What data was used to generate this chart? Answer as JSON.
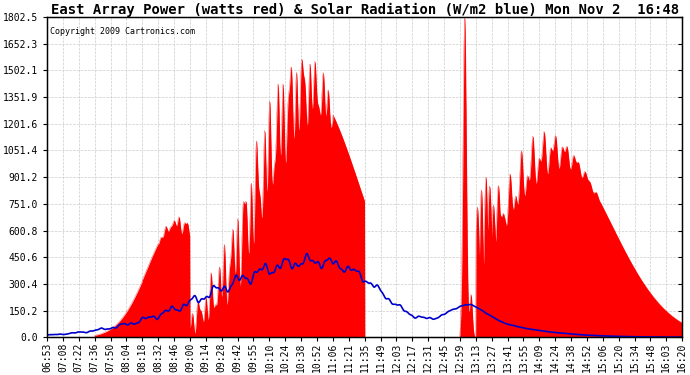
{
  "title": "East Array Power (watts red) & Solar Radiation (W/m2 blue) Mon Nov 2  16:48",
  "copyright_text": "Copyright 2009 Cartronics.com",
  "yticks": [
    0.0,
    150.2,
    300.4,
    450.6,
    600.8,
    751.0,
    901.2,
    1051.4,
    1201.6,
    1351.9,
    1502.1,
    1652.3,
    1802.5
  ],
  "ymax": 1802.5,
  "ymin": 0.0,
  "bg_color": "#ffffff",
  "plot_bg_color": "#ffffff",
  "grid_color": "#cccccc",
  "red_color": "#ff0000",
  "blue_color": "#0000cc",
  "time_labels": [
    "06:53",
    "07:08",
    "07:22",
    "07:36",
    "07:50",
    "08:04",
    "08:18",
    "08:32",
    "08:46",
    "09:00",
    "09:14",
    "09:28",
    "09:42",
    "09:55",
    "10:10",
    "10:24",
    "10:38",
    "10:52",
    "11:06",
    "11:21",
    "11:35",
    "11:49",
    "12:03",
    "12:17",
    "12:31",
    "12:45",
    "12:59",
    "13:13",
    "13:27",
    "13:41",
    "13:55",
    "14:09",
    "14:24",
    "14:38",
    "14:52",
    "15:06",
    "15:20",
    "15:34",
    "15:48",
    "16:03",
    "16:20"
  ],
  "title_fontsize": 10,
  "tick_fontsize": 7
}
